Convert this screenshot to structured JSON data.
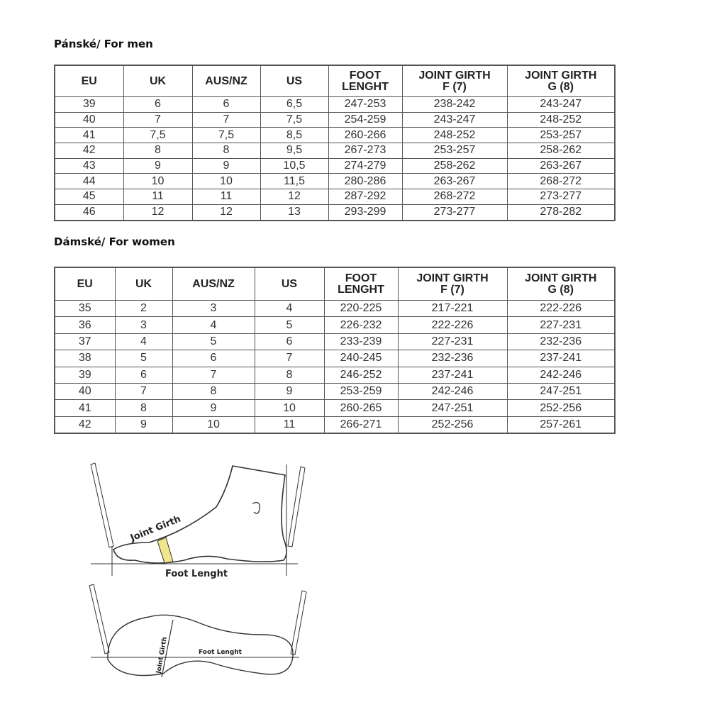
{
  "men": {
    "title": "Pánské/ For men",
    "headers": [
      "EU",
      "UK",
      "AUS/NZ",
      "US",
      "FOOT LENGHT",
      "JOINT GIRTH F (7)",
      "JOINT GIRTH G (8)"
    ],
    "rows": [
      [
        "39",
        "6",
        "6",
        "6,5",
        "247-253",
        "238-242",
        "243-247"
      ],
      [
        "40",
        "7",
        "7",
        "7,5",
        "254-259",
        "243-247",
        "248-252"
      ],
      [
        "41",
        "7,5",
        "7,5",
        "8,5",
        "260-266",
        "248-252",
        "253-257"
      ],
      [
        "42",
        "8",
        "8",
        "9,5",
        "267-273",
        "253-257",
        "258-262"
      ],
      [
        "43",
        "9",
        "9",
        "10,5",
        "274-279",
        "258-262",
        "263-267"
      ],
      [
        "44",
        "10",
        "10",
        "11,5",
        "280-286",
        "263-267",
        "268-272"
      ],
      [
        "45",
        "11",
        "11",
        "12",
        "287-292",
        "268-272",
        "273-277"
      ],
      [
        "46",
        "12",
        "12",
        "13",
        "293-299",
        "273-277",
        "278-282"
      ]
    ]
  },
  "women": {
    "title": "Dámské/ For women",
    "headers": [
      "EU",
      "UK",
      "AUS/NZ",
      "US",
      "FOOT LENGHT",
      "JOINT GIRTH F (7)",
      "JOINT GIRTH G (8)"
    ],
    "rows": [
      [
        "35",
        "2",
        "3",
        "4",
        "220-225",
        "217-221",
        "222-226"
      ],
      [
        "36",
        "3",
        "4",
        "5",
        "226-232",
        "222-226",
        "227-231"
      ],
      [
        "37",
        "4",
        "5",
        "6",
        "233-239",
        "227-231",
        "232-236"
      ],
      [
        "38",
        "5",
        "6",
        "7",
        "240-245",
        "232-236",
        "237-241"
      ],
      [
        "39",
        "6",
        "7",
        "8",
        "246-252",
        "237-241",
        "242-246"
      ],
      [
        "40",
        "7",
        "8",
        "9",
        "253-259",
        "242-246",
        "247-251"
      ],
      [
        "41",
        "8",
        "9",
        "10",
        "260-265",
        "247-251",
        "252-256"
      ],
      [
        "42",
        "9",
        "10",
        "11",
        "266-271",
        "252-256",
        "257-261"
      ]
    ]
  },
  "diagram": {
    "side_joint_girth": "Joint Girth",
    "side_foot_length": "Foot Lenght",
    "top_joint_girth": "Joint Girth",
    "top_foot_length": "Foot Lenght"
  }
}
